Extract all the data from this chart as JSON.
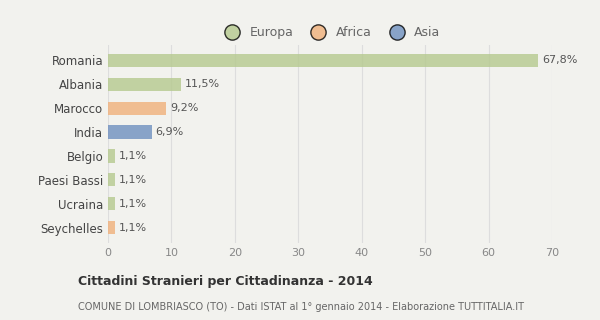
{
  "categories": [
    "Romania",
    "Albania",
    "Marocco",
    "India",
    "Belgio",
    "Paesi Bassi",
    "Ucraina",
    "Seychelles"
  ],
  "values": [
    67.8,
    11.5,
    9.2,
    6.9,
    1.1,
    1.1,
    1.1,
    1.1
  ],
  "labels": [
    "67,8%",
    "11,5%",
    "9,2%",
    "6,9%",
    "1,1%",
    "1,1%",
    "1,1%",
    "1,1%"
  ],
  "colors": [
    "#b5c98e",
    "#b5c98e",
    "#f0b07a",
    "#6e8fbf",
    "#b5c98e",
    "#b5c98e",
    "#b5c98e",
    "#f0b07a"
  ],
  "legend_labels": [
    "Europa",
    "Africa",
    "Asia"
  ],
  "legend_colors": [
    "#b5c98e",
    "#f0b07a",
    "#6e8fbf"
  ],
  "xlim": [
    0,
    70
  ],
  "xticks": [
    0,
    10,
    20,
    30,
    40,
    50,
    60,
    70
  ],
  "title_line1": "Cittadini Stranieri per Cittadinanza - 2014",
  "title_line2": "COMUNE DI LOMBRIASCO (TO) - Dati ISTAT al 1° gennaio 2014 - Elaborazione TUTTITALIA.IT",
  "bg_color": "#f2f2ee",
  "bar_alpha": 0.8
}
